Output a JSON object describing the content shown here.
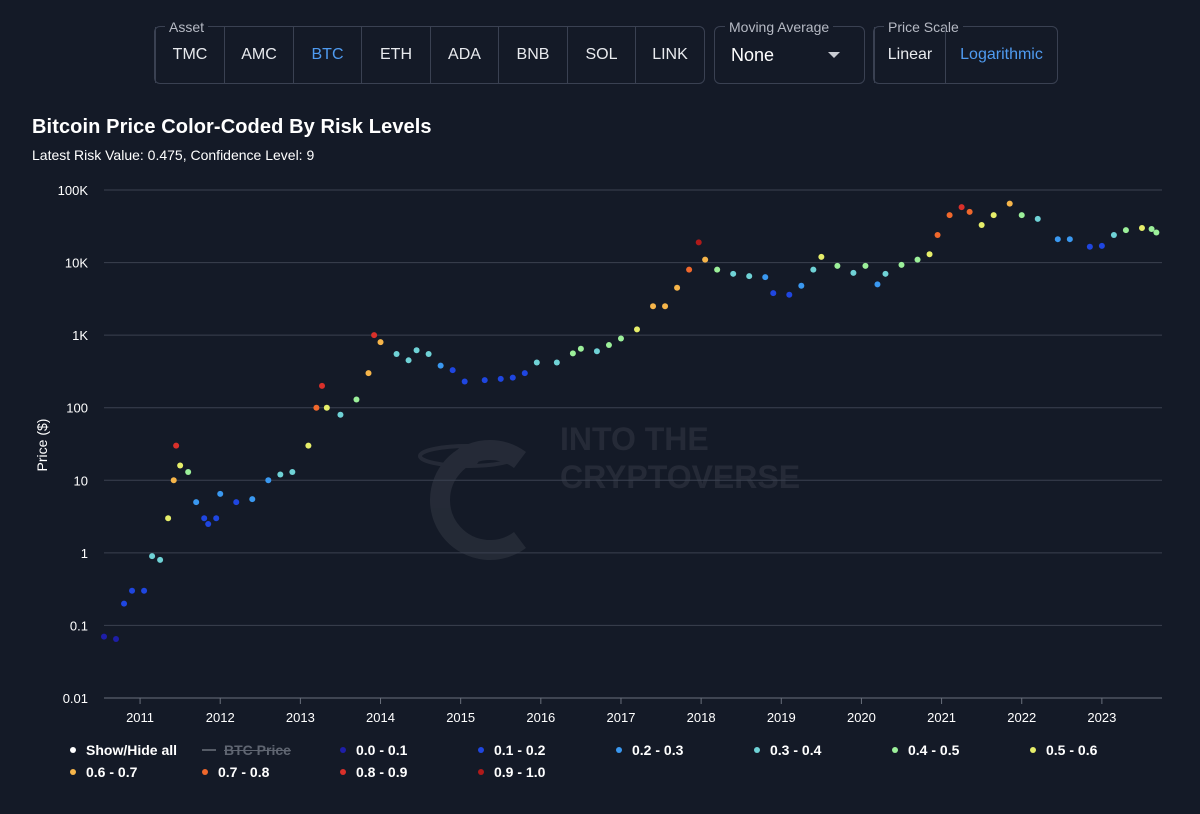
{
  "controls": {
    "asset": {
      "legend": "Asset",
      "options": [
        "TMC",
        "AMC",
        "BTC",
        "ETH",
        "ADA",
        "BNB",
        "SOL",
        "LINK"
      ],
      "selected": "BTC"
    },
    "moving_average": {
      "legend": "Moving Average",
      "value": "None"
    },
    "price_scale": {
      "legend": "Price Scale",
      "options": [
        "Linear",
        "Logarithmic"
      ],
      "selected": "Logarithmic"
    }
  },
  "watermark": {
    "line1": "INTO THE",
    "line2": "CRYPTOVERSE"
  },
  "colors": {
    "background": "#141a27",
    "grid": "#3b4150",
    "accent": "#4f9bf0",
    "risk": [
      "#1e1ea8",
      "#1f46e0",
      "#3a98f0",
      "#6fd2d6",
      "#9cf09a",
      "#e6ee6a",
      "#f6b54a",
      "#f0682c",
      "#d9302a",
      "#b01a1a"
    ]
  },
  "legend": {
    "show_hide_all": "Show/Hide all",
    "btc_price": "BTC Price",
    "ranges": [
      "0.0 - 0.1",
      "0.1 - 0.2",
      "0.2 - 0.3",
      "0.3 - 0.4",
      "0.4 - 0.5",
      "0.5 - 0.6",
      "0.6 - 0.7",
      "0.7 - 0.8",
      "0.8 - 0.9",
      "0.9 - 1.0"
    ]
  },
  "chart_data": {
    "type": "scatter",
    "title": "Bitcoin Price Color-Coded By Risk Levels",
    "subtitle": "Latest Risk Value: 0.475, Confidence Level: 9",
    "xlabel": "",
    "ylabel": "Price ($)",
    "y_scale": "log",
    "ylim": [
      0.01,
      100000
    ],
    "xlim": [
      2010.55,
      2023.75
    ],
    "y_ticks": [
      0.01,
      0.1,
      1,
      10,
      100,
      1000,
      10000,
      100000
    ],
    "y_tick_labels": [
      "0.01",
      "0.1",
      "1",
      "10",
      "100",
      "1K",
      "10K",
      "100K"
    ],
    "x_ticks": [
      2011,
      2012,
      2013,
      2014,
      2015,
      2016,
      2017,
      2018,
      2019,
      2020,
      2021,
      2022,
      2023
    ],
    "x_tick_labels": [
      "2011",
      "2012",
      "2013",
      "2014",
      "2015",
      "2016",
      "2017",
      "2018",
      "2019",
      "2020",
      "2021",
      "2022",
      "2023"
    ],
    "grid": true,
    "legend_position": "bottom",
    "series": [
      {
        "name": "BTC Price",
        "hidden": true,
        "points": [
          [
            2010.55,
            0.07,
            0.05
          ],
          [
            2010.7,
            0.065,
            0.05
          ],
          [
            2010.8,
            0.2,
            0.12
          ],
          [
            2010.9,
            0.3,
            0.15
          ],
          [
            2011.05,
            0.3,
            0.15
          ],
          [
            2011.15,
            0.9,
            0.32
          ],
          [
            2011.25,
            0.8,
            0.3
          ],
          [
            2011.35,
            3,
            0.52
          ],
          [
            2011.42,
            10,
            0.65
          ],
          [
            2011.45,
            30,
            0.85
          ],
          [
            2011.5,
            16,
            0.55
          ],
          [
            2011.6,
            13,
            0.45
          ],
          [
            2011.7,
            5,
            0.25
          ],
          [
            2011.8,
            3,
            0.15
          ],
          [
            2011.85,
            2.5,
            0.12
          ],
          [
            2011.95,
            3,
            0.15
          ],
          [
            2012.0,
            6.5,
            0.2
          ],
          [
            2012.2,
            5,
            0.18
          ],
          [
            2012.4,
            5.5,
            0.2
          ],
          [
            2012.6,
            10,
            0.26
          ],
          [
            2012.75,
            12,
            0.32
          ],
          [
            2012.9,
            13,
            0.34
          ],
          [
            2013.1,
            30,
            0.5
          ],
          [
            2013.2,
            100,
            0.75
          ],
          [
            2013.27,
            200,
            0.88
          ],
          [
            2013.33,
            100,
            0.55
          ],
          [
            2013.5,
            80,
            0.35
          ],
          [
            2013.7,
            130,
            0.4
          ],
          [
            2013.85,
            300,
            0.6
          ],
          [
            2013.92,
            1000,
            0.88
          ],
          [
            2014.0,
            800,
            0.6
          ],
          [
            2014.2,
            550,
            0.38
          ],
          [
            2014.35,
            450,
            0.3
          ],
          [
            2014.45,
            620,
            0.35
          ],
          [
            2014.6,
            550,
            0.3
          ],
          [
            2014.75,
            380,
            0.2
          ],
          [
            2014.9,
            330,
            0.18
          ],
          [
            2015.05,
            230,
            0.12
          ],
          [
            2015.3,
            240,
            0.12
          ],
          [
            2015.5,
            250,
            0.14
          ],
          [
            2015.65,
            260,
            0.15
          ],
          [
            2015.8,
            300,
            0.18
          ],
          [
            2015.95,
            420,
            0.32
          ],
          [
            2016.2,
            420,
            0.34
          ],
          [
            2016.4,
            560,
            0.42
          ],
          [
            2016.5,
            650,
            0.45
          ],
          [
            2016.7,
            600,
            0.38
          ],
          [
            2016.85,
            730,
            0.42
          ],
          [
            2017.0,
            900,
            0.48
          ],
          [
            2017.2,
            1200,
            0.55
          ],
          [
            2017.4,
            2500,
            0.63
          ],
          [
            2017.55,
            2500,
            0.6
          ],
          [
            2017.7,
            4500,
            0.68
          ],
          [
            2017.85,
            8000,
            0.75
          ],
          [
            2017.97,
            19000,
            0.9
          ],
          [
            2018.05,
            11000,
            0.6
          ],
          [
            2018.2,
            8000,
            0.42
          ],
          [
            2018.4,
            7000,
            0.35
          ],
          [
            2018.6,
            6500,
            0.3
          ],
          [
            2018.8,
            6300,
            0.25
          ],
          [
            2018.9,
            3800,
            0.18
          ],
          [
            2019.1,
            3600,
            0.18
          ],
          [
            2019.25,
            4800,
            0.24
          ],
          [
            2019.4,
            8000,
            0.38
          ],
          [
            2019.5,
            12000,
            0.5
          ],
          [
            2019.7,
            9000,
            0.42
          ],
          [
            2019.9,
            7200,
            0.38
          ],
          [
            2020.05,
            9000,
            0.45
          ],
          [
            2020.2,
            5000,
            0.22
          ],
          [
            2020.3,
            7000,
            0.32
          ],
          [
            2020.5,
            9300,
            0.4
          ],
          [
            2020.7,
            11000,
            0.45
          ],
          [
            2020.85,
            13000,
            0.55
          ],
          [
            2020.95,
            24000,
            0.7
          ],
          [
            2021.1,
            45000,
            0.78
          ],
          [
            2021.25,
            58000,
            0.85
          ],
          [
            2021.35,
            50000,
            0.72
          ],
          [
            2021.5,
            33000,
            0.5
          ],
          [
            2021.65,
            45000,
            0.55
          ],
          [
            2021.85,
            65000,
            0.6
          ],
          [
            2022.0,
            45000,
            0.45
          ],
          [
            2022.2,
            40000,
            0.38
          ],
          [
            2022.45,
            21000,
            0.2
          ],
          [
            2022.6,
            21000,
            0.22
          ],
          [
            2022.85,
            16500,
            0.15
          ],
          [
            2023.0,
            17000,
            0.18
          ],
          [
            2023.15,
            24000,
            0.38
          ],
          [
            2023.3,
            28000,
            0.45
          ],
          [
            2023.5,
            30000,
            0.5
          ],
          [
            2023.62,
            29000,
            0.48
          ],
          [
            2023.68,
            26000,
            0.47
          ]
        ]
      }
    ]
  }
}
